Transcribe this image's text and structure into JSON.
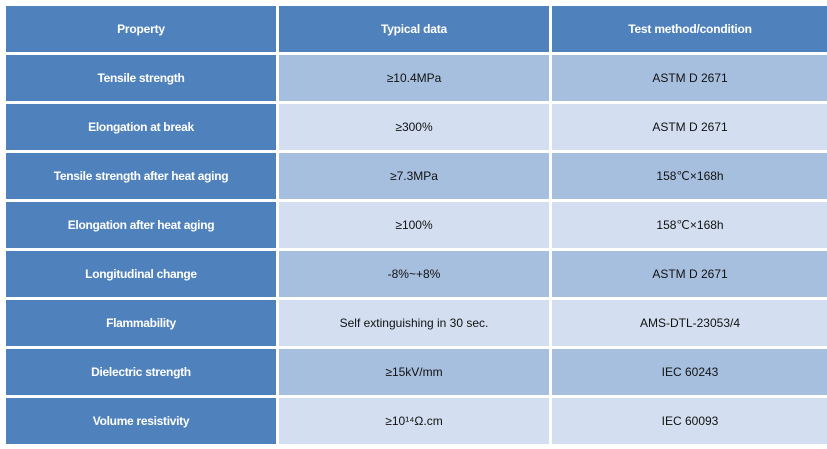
{
  "table": {
    "headers": [
      "Property",
      "Typical data",
      "Test method/condition"
    ],
    "rows": [
      {
        "property": "Tensile strength",
        "typical": "≥10.4MPa",
        "method": "ASTM D 2671"
      },
      {
        "property": "Elongation at break",
        "typical": "≥300%",
        "method": "ASTM D 2671"
      },
      {
        "property": "Tensile strength after heat aging",
        "typical": "≥7.3MPa",
        "method": "158℃×168h"
      },
      {
        "property": "Elongation after heat aging",
        "typical": "≥100%",
        "method": "158℃×168h"
      },
      {
        "property": "Longitudinal change",
        "typical": "-8%~+8%",
        "method": "ASTM D 2671"
      },
      {
        "property": "Flammability",
        "typical": "Self extinguishing in 30 sec.",
        "method": "AMS-DTL-23053/4"
      },
      {
        "property": "Dielectric strength",
        "typical": "≥15kV/mm",
        "method": "IEC 60243"
      },
      {
        "property": "Volume resistivity",
        "typical": "≥10¹⁴Ω.cm",
        "method": "IEC 60093"
      }
    ]
  },
  "colors": {
    "header_bg": "#4f81bd",
    "row_dark": "#a7bfdf",
    "row_light": "#d3dff0",
    "header_text": "#ffffff"
  }
}
